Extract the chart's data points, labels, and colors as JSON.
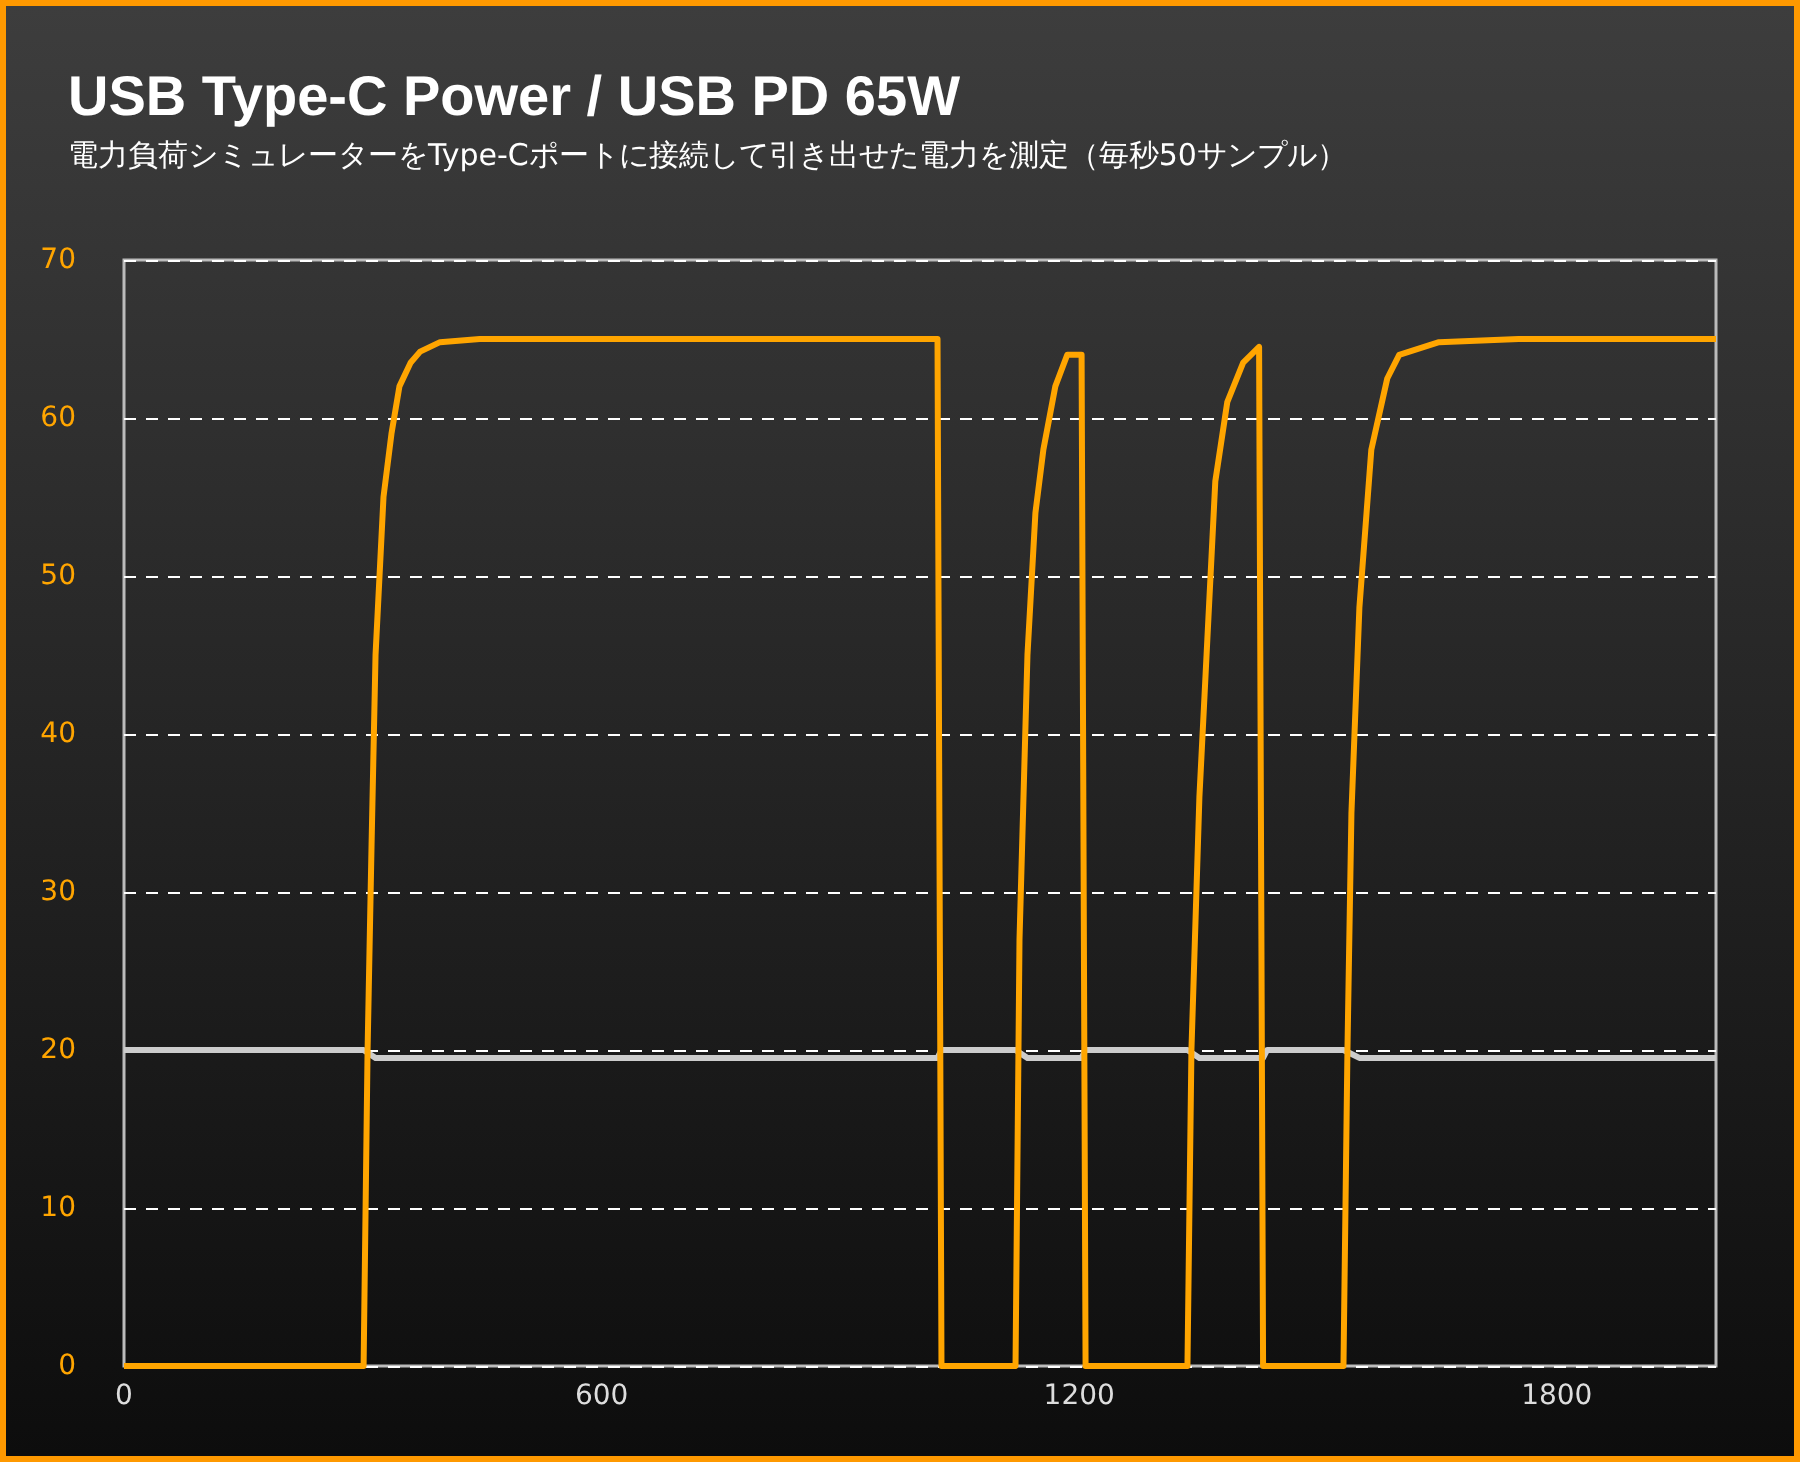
{
  "chart_data": {
    "type": "line",
    "title": "USB Type-C Power / USB PD 65W",
    "subtitle": "電力負荷シミュレーターをType-Cポートに接続して引き出せた電力を測定（毎秒50サンプル）",
    "series": [
      {
        "color": "#cccccc",
        "x": [
          0,
          301,
          316,
          346,
          1022,
          1027,
          1120,
          1135,
          1203,
          1208,
          1336,
          1351,
          1431,
          1436,
          1532,
          1552,
          2000
        ],
        "values": [
          20,
          20,
          19.5,
          19.5,
          19.5,
          20,
          20,
          19.5,
          19.5,
          20,
          20,
          19.5,
          19.5,
          20,
          20,
          19.5,
          19.5
        ]
      },
      {
        "color": "#ffa500",
        "x": [
          0,
          301,
          306,
          311,
          316,
          326,
          336,
          346,
          360,
          372,
          397,
          447,
          600,
          1022,
          1027,
          1120,
          1125,
          1135,
          1145,
          1155,
          1170,
          1185,
          1203,
          1208,
          1336,
          1341,
          1351,
          1361,
          1371,
          1386,
          1406,
          1426,
          1431,
          1436,
          1532,
          1537,
          1542,
          1552,
          1567,
          1587,
          1602,
          1652,
          1752,
          2000
        ],
        "values": [
          0,
          0,
          20,
          33,
          45,
          55,
          59,
          62,
          63.5,
          64.2,
          64.8,
          65,
          65,
          65,
          0,
          0,
          27,
          45,
          54,
          58,
          62,
          64,
          64,
          0,
          0,
          20,
          36,
          46,
          56,
          61,
          63.5,
          64.5,
          0,
          0,
          0,
          20,
          35,
          48,
          58,
          62.5,
          64,
          64.8,
          65,
          65
        ]
      }
    ],
    "xlim": [
      0,
      2000
    ],
    "xticks": [
      0,
      600,
      1200,
      1800
    ],
    "ylim": [
      0,
      70
    ],
    "yticks": [
      0,
      10,
      20,
      30,
      40,
      50,
      60,
      70
    ],
    "grid": "y",
    "marker": "none",
    "line_style": "solid"
  }
}
